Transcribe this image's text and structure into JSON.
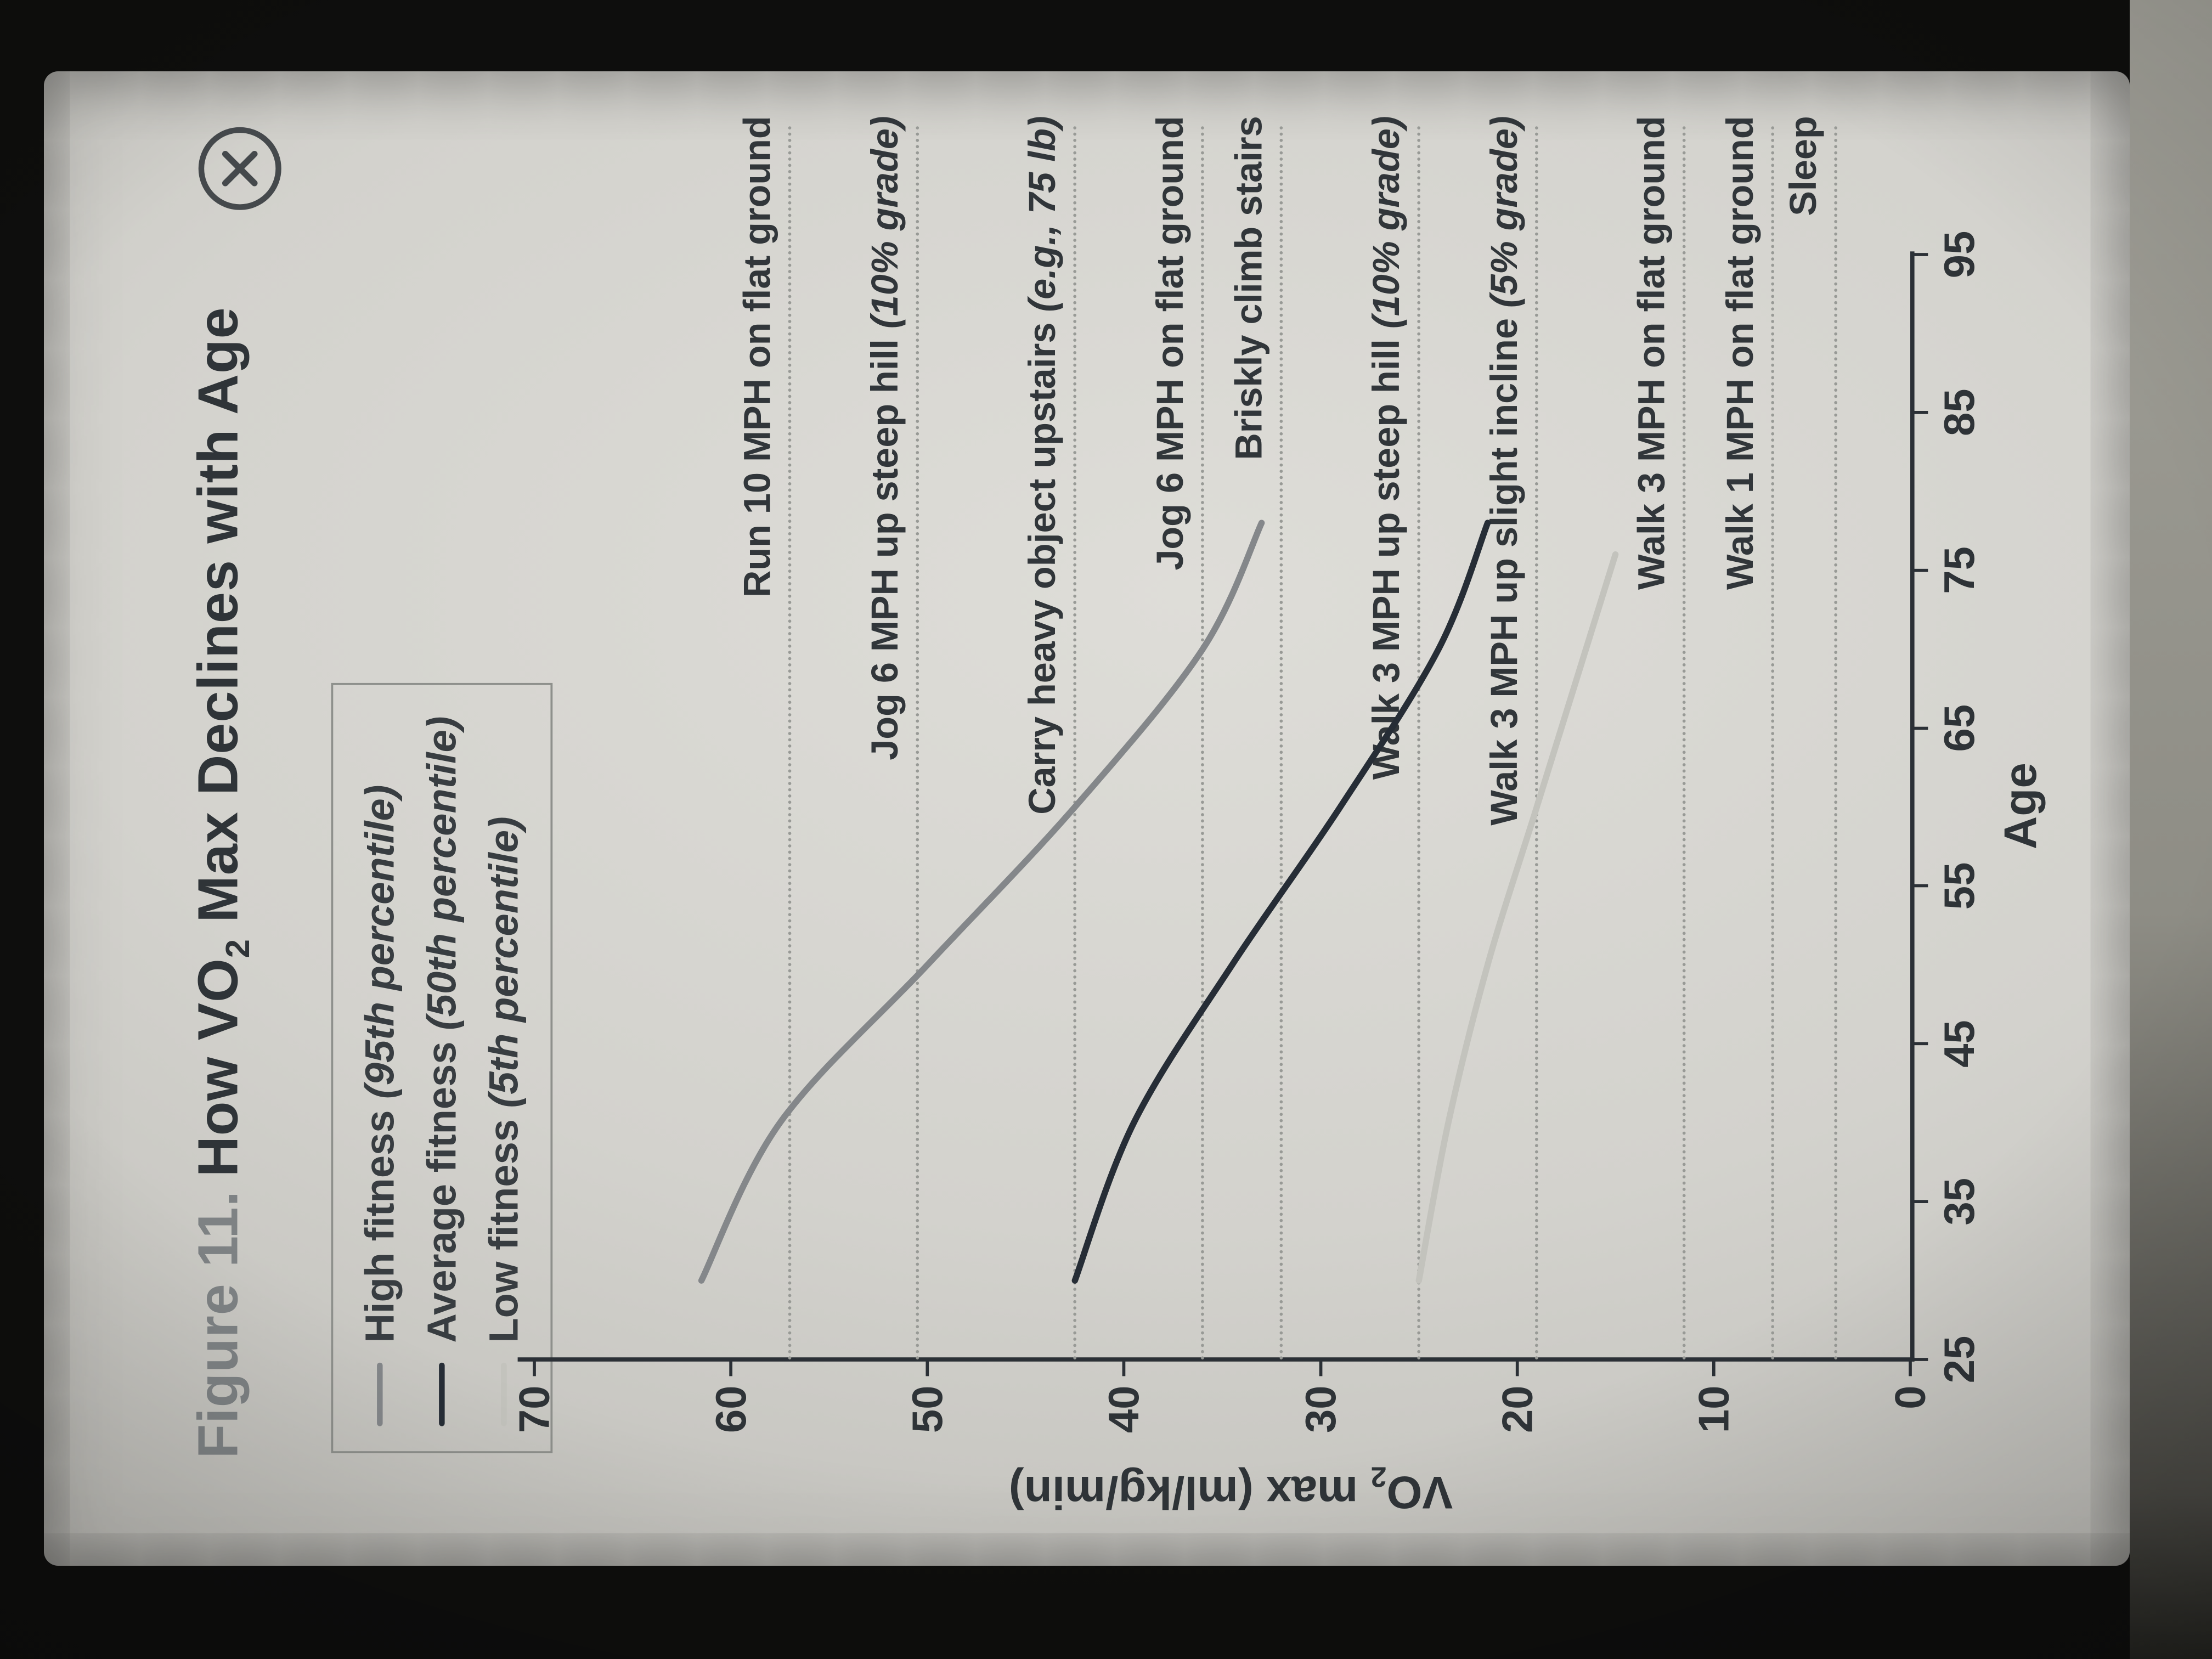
{
  "window": {
    "close_button": "close"
  },
  "figure": {
    "title_prefix": "Figure 11.",
    "title_main_pre": "How VO",
    "title_sub": "2",
    "title_main_post": " Max Declines with Age"
  },
  "legend": [
    {
      "name": "High fitness ",
      "note": "(95th percentile)",
      "color": "#84878a"
    },
    {
      "name": "Average fitness ",
      "note": "(50th percentile)",
      "color": "#262d36"
    },
    {
      "name": "Low fitness ",
      "note": "(5th percentile)",
      "color": "#c3c3bd"
    }
  ],
  "axes": {
    "x_label": "Age",
    "y_label_pre": "VO",
    "y_label_sub": "2",
    "y_label_post": " max (ml/kg/min)"
  },
  "chart_data": {
    "type": "line",
    "title": "Figure 11. How VO2 Max Declines with Age",
    "xlabel": "Age",
    "ylabel": "VO2 max (ml/kg/min)",
    "xlim": [
      25,
      95
    ],
    "ylim": [
      0,
      70
    ],
    "x_ticks": [
      25,
      35,
      45,
      55,
      65,
      75,
      85,
      95
    ],
    "y_ticks": [
      0,
      10,
      20,
      30,
      40,
      50,
      60,
      70
    ],
    "grid": false,
    "legend_position": "top-left",
    "series": [
      {
        "name": "High fitness (95th percentile)",
        "color": "#84878a",
        "points": [
          [
            30,
            61.5
          ],
          [
            40,
            57.5
          ],
          [
            50,
            50
          ],
          [
            60,
            42.5
          ],
          [
            70,
            36
          ],
          [
            78,
            33
          ]
        ]
      },
      {
        "name": "Average fitness (50th percentile)",
        "color": "#262d36",
        "points": [
          [
            30,
            42.5
          ],
          [
            40,
            39.5
          ],
          [
            50,
            34.5
          ],
          [
            60,
            29
          ],
          [
            70,
            24
          ],
          [
            78,
            21.5
          ]
        ]
      },
      {
        "name": "Low fitness (5th percentile)",
        "color": "#c3c3bd",
        "points": [
          [
            30,
            25
          ],
          [
            40,
            23.5
          ],
          [
            50,
            21.5
          ],
          [
            60,
            19
          ],
          [
            70,
            16.5
          ],
          [
            76,
            15
          ]
        ]
      }
    ],
    "reference_lines": [
      {
        "value": 57,
        "label": "Run 10 MPH on flat ground",
        "note": ""
      },
      {
        "value": 50.5,
        "label": "Jog 6 MPH up steep hill ",
        "note": "(10% grade)"
      },
      {
        "value": 42.5,
        "label": "Carry heavy object upstairs ",
        "note": "(e.g., 75 lb)"
      },
      {
        "value": 36,
        "label": "Jog 6 MPH on flat ground",
        "note": ""
      },
      {
        "value": 32,
        "label": "Briskly climb stairs",
        "note": ""
      },
      {
        "value": 25,
        "label": "Walk 3 MPH up steep hill ",
        "note": "(10% grade)"
      },
      {
        "value": 19,
        "label": "Walk 3 MPH up slight incline ",
        "note": "(5% grade)"
      },
      {
        "value": 11.5,
        "label": "Walk 3 MPH on flat ground",
        "note": ""
      },
      {
        "value": 7,
        "label": "Walk 1 MPH on flat ground",
        "note": ""
      },
      {
        "value": 3.8,
        "label": "Sleep",
        "note": ""
      }
    ]
  }
}
